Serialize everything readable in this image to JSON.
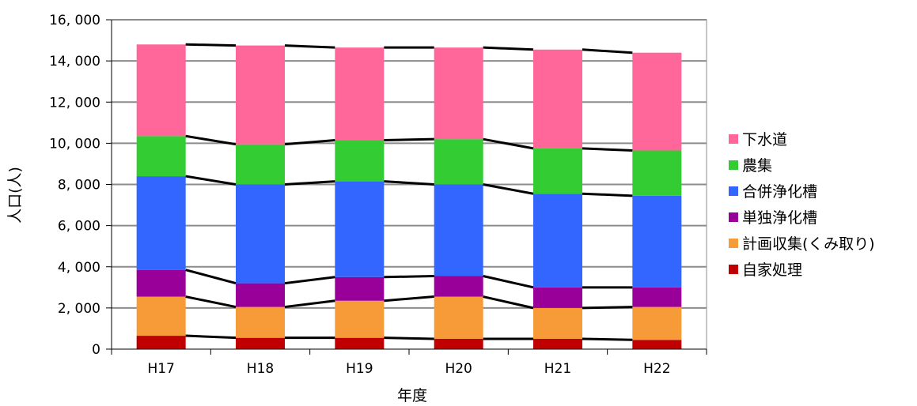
{
  "chart_data": {
    "type": "bar",
    "stacked": true,
    "xlabel": "年度",
    "ylabel": "人口(人)",
    "categories": [
      "H17",
      "H18",
      "H19",
      "H20",
      "H21",
      "H22"
    ],
    "ylim": [
      0,
      16000
    ],
    "yticks": [
      0,
      2000,
      4000,
      6000,
      8000,
      10000,
      12000,
      14000,
      16000
    ],
    "ytick_labels": [
      "0",
      "2, 000",
      "4, 000",
      "6, 000",
      "8, 000",
      "10, 000",
      "12, 000",
      "14, 000",
      "16, 000"
    ],
    "grid": true,
    "legend_position": "right",
    "series_lines": true,
    "series": [
      {
        "name": "自家処理",
        "color": "#c00000",
        "values": [
          650,
          550,
          550,
          500,
          500,
          450
        ]
      },
      {
        "name": "計画収集(くみ取り)",
        "color": "#f79a38",
        "values": [
          1900,
          1500,
          1800,
          2050,
          1500,
          1600
        ]
      },
      {
        "name": "単独浄化槽",
        "color": "#990099",
        "values": [
          1300,
          1150,
          1150,
          1000,
          1000,
          950
        ]
      },
      {
        "name": "合併浄化槽",
        "color": "#3366ff",
        "values": [
          4550,
          4800,
          4650,
          4450,
          4550,
          4450
        ]
      },
      {
        "name": "農集",
        "color": "#33cc33",
        "values": [
          1950,
          1950,
          2000,
          2200,
          2200,
          2200
        ]
      },
      {
        "name": "下水道",
        "color": "#ff6699",
        "values": [
          4450,
          4800,
          4500,
          4450,
          4800,
          4750
        ]
      }
    ]
  }
}
